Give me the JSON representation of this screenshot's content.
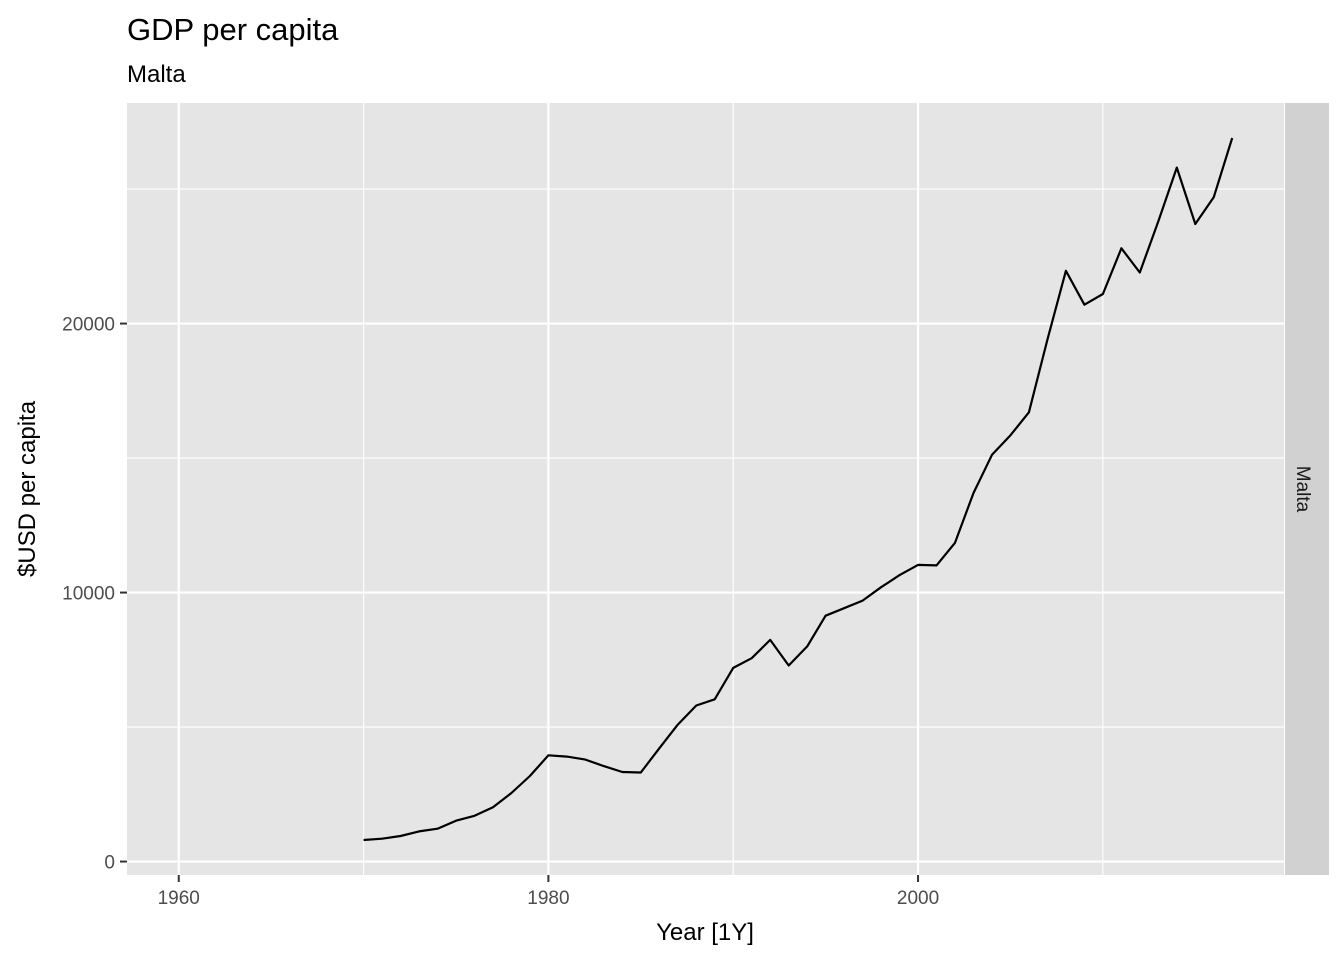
{
  "chart_data": {
    "type": "line",
    "title": "GDP per capita",
    "subtitle": "Malta",
    "xlabel": "Year [1Y]",
    "ylabel": "$USD per capita",
    "facet_label": "Malta",
    "xlim": [
      1957.2,
      2019.8
    ],
    "ylim": [
      -500,
      28200
    ],
    "x_ticks": [
      1960,
      1980,
      2000
    ],
    "x_tick_labels": [
      "1960",
      "1980",
      "2000"
    ],
    "x_minor_ticks": [
      1970,
      1990,
      2010
    ],
    "y_ticks": [
      0,
      10000,
      20000
    ],
    "y_tick_labels": [
      "0",
      "10000",
      "20000"
    ],
    "y_minor_ticks": [
      5000,
      15000,
      25000
    ],
    "grid": true,
    "colors": {
      "panel_bg": "#e5e5e5",
      "grid": "#ffffff",
      "strip_bg": "#d1d1d1",
      "line": "#000000"
    },
    "series": [
      {
        "x": [
          1970,
          1971,
          1972,
          1973,
          1974,
          1975,
          1976,
          1977,
          1978,
          1979,
          1980,
          1981,
          1982,
          1983,
          1984,
          1985,
          1986,
          1987,
          1988,
          1989,
          1990,
          1991,
          1992,
          1993,
          1994,
          1995,
          1996,
          1997,
          1998,
          1999,
          2000,
          2001,
          2002,
          2003,
          2004,
          2005,
          2006,
          2007,
          2008,
          2009,
          2010,
          2011,
          2012,
          2013,
          2014,
          2015,
          2016,
          2017
        ],
        "values": [
          800,
          850,
          950,
          1120,
          1220,
          1520,
          1700,
          2020,
          2550,
          3180,
          3950,
          3900,
          3790,
          3550,
          3330,
          3310,
          4210,
          5090,
          5800,
          6030,
          7200,
          7560,
          8240,
          7290,
          8000,
          9140,
          9420,
          9700,
          10200,
          10650,
          11030,
          11010,
          11850,
          13700,
          15120,
          15850,
          16700,
          19400,
          21960,
          20700,
          21100,
          22800,
          21900,
          23800,
          25800,
          23700,
          24700,
          26900
        ]
      }
    ]
  }
}
